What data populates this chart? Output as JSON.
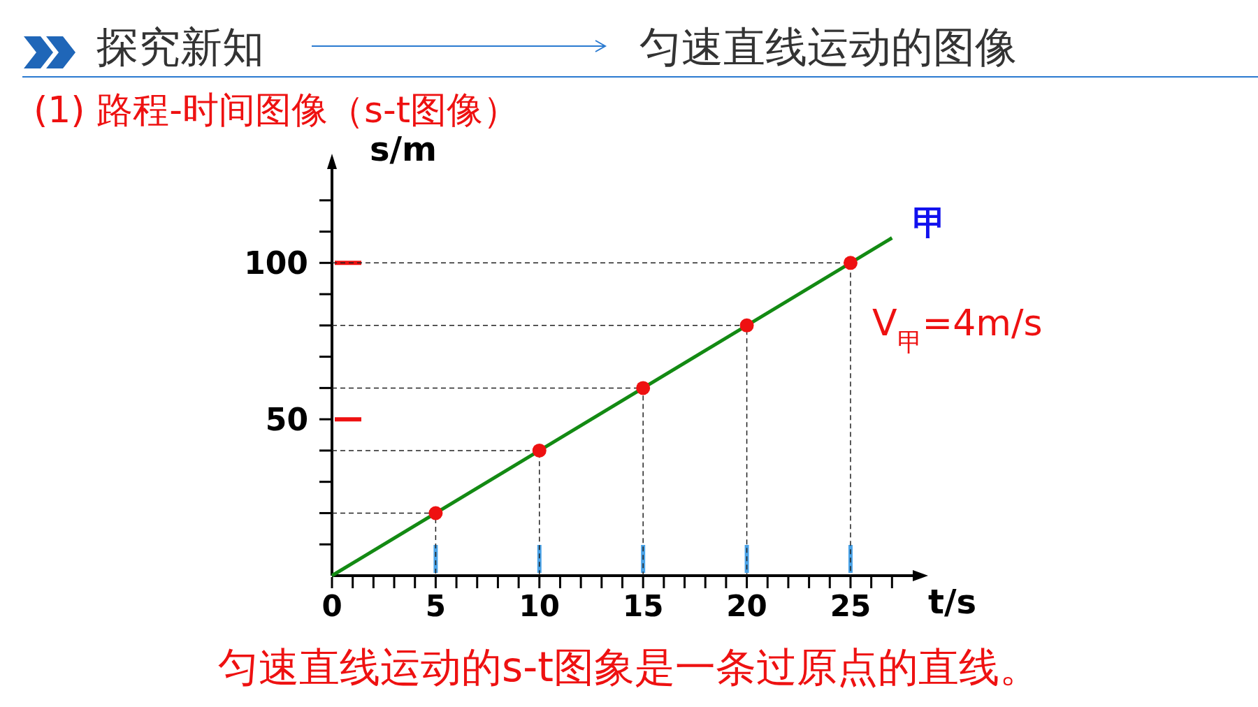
{
  "chart_data": {
    "type": "line",
    "title": "探究新知",
    "subtitle": "匀速直线运动的图像",
    "xlabel": "t/s",
    "ylabel": "s/m",
    "annotations": [
      "(1) 路程-时间图像（s-t图像）",
      "V$_{甲}$=4m/s",
      "匀速直线运动的s-t图象是一条过原点的直线。"
    ],
    "xlim": [
      0,
      28
    ],
    "ylim": [
      0,
      130
    ],
    "xticks": [
      0,
      {
        "value": 1,
        "label": null
      },
      {
        "value": 2,
        "label": null
      },
      {
        "value": 3,
        "label": null
      },
      {
        "value": 4,
        "label": null
      },
      5,
      {
        "value": 6,
        "label": null
      },
      {
        "value": 7,
        "label": null
      },
      {
        "value": 8,
        "label": null
      },
      {
        "value": 9,
        "label": null
      },
      10,
      {
        "value": 11,
        "label": null
      },
      {
        "value": 12,
        "label": null
      },
      {
        "value": 13,
        "label": null
      },
      {
        "value": 14,
        "label": null
      },
      15,
      {
        "value": 16,
        "label": null
      },
      {
        "value": 17,
        "label": null
      },
      {
        "value": 18,
        "label": null
      },
      {
        "value": 19,
        "label": null
      },
      20,
      {
        "value": 21,
        "label": null
      },
      {
        "value": 22,
        "label": null
      },
      {
        "value": 23,
        "label": null
      },
      {
        "value": 24,
        "label": null
      },
      25,
      {
        "value": 26,
        "label": null
      },
      {
        "value": 27,
        "label": null
      }
    ],
    "yticks": [
      {
        "value": 10,
        "label": null
      },
      {
        "value": 20,
        "label": null
      },
      {
        "value": 30,
        "label": null
      },
      {
        "value": 40,
        "label": null
      },
      50,
      {
        "value": 60,
        "label": null
      },
      {
        "value": 70,
        "label": null
      },
      {
        "value": 80,
        "label": null
      },
      {
        "value": 90,
        "label": null
      },
      100,
      {
        "value": 110,
        "label": null
      },
      {
        "value": 120,
        "label": null
      }
    ],
    "grid": false,
    "legend": false,
    "series": [
      {
        "name": "甲",
        "type": "line",
        "color": "#138a13",
        "x": [
          0,
          27
        ],
        "values": [
          0,
          108
        ],
        "marker": "none",
        "line_style": "solid"
      },
      {
        "type": "line",
        "color": "#222222",
        "x": [
          0,
          5,
          5
        ],
        "values": [
          20,
          20,
          0
        ],
        "marker": "none",
        "line_style": "dashed"
      },
      {
        "type": "line",
        "color": "#222222",
        "x": [
          0,
          10,
          10
        ],
        "values": [
          40,
          40,
          0
        ],
        "marker": "none",
        "line_style": "dashed"
      },
      {
        "type": "line",
        "color": "#222222",
        "x": [
          0,
          15,
          15
        ],
        "values": [
          60,
          60,
          0
        ],
        "marker": "none",
        "line_style": "dashed"
      },
      {
        "type": "line",
        "color": "#222222",
        "x": [
          0,
          20,
          20
        ],
        "values": [
          80,
          80,
          0
        ],
        "marker": "none",
        "line_style": "dashed"
      },
      {
        "type": "line",
        "color": "#222222",
        "x": [
          0,
          25,
          25
        ],
        "values": [
          100,
          100,
          0
        ],
        "marker": "none",
        "line_style": "dashed"
      },
      {
        "type": "scatter",
        "color": "#ee1111",
        "x": [
          5,
          10,
          15,
          20,
          25
        ],
        "values": [
          20,
          40,
          60,
          80,
          100
        ],
        "marker": "circle"
      }
    ]
  }
}
